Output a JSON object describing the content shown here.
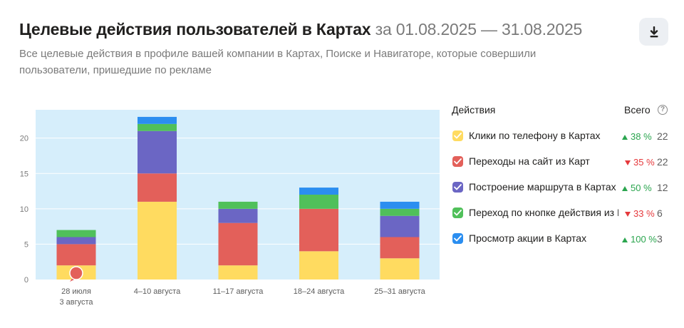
{
  "header": {
    "title": "Целевые действия пользователей в Картах",
    "period": "за 01.08.2025 — 31.08.2025",
    "subtitle": "Все целевые действия в профиле вашей компании в Картах, Поиске и Навигаторе, которые совершили пользователи, пришедшие по рекламе"
  },
  "download_icon": "download-icon",
  "legend": {
    "col_actions": "Действия",
    "col_total": "Всего",
    "help_glyph": "?",
    "items": [
      {
        "label": "Клики по телефону в Картах",
        "color": "#ffdb60",
        "change": "38 %",
        "direction": "up",
        "total": "22"
      },
      {
        "label": "Переходы на сайт из Карт",
        "color": "#e3605a",
        "change": "35 %",
        "direction": "down",
        "total": "22"
      },
      {
        "label": "Построение маршрута в Картах",
        "color": "#6b66c4",
        "change": "50 %",
        "direction": "up",
        "total": "12"
      },
      {
        "label": "Переход по кнопке действия из Карт",
        "color": "#50c05a",
        "change": "33 %",
        "direction": "down",
        "total": "6"
      },
      {
        "label": "Просмотр акции в Картах",
        "color": "#2b8ef0",
        "change": "100 %",
        "direction": "up",
        "total": "3"
      }
    ]
  },
  "chart_data": {
    "type": "bar",
    "stacked": true,
    "categories": [
      [
        "28 июля",
        "3 августа"
      ],
      [
        "4–10 августа"
      ],
      [
        "11–17 августа"
      ],
      [
        "18–24 августа"
      ],
      [
        "25–31 августа"
      ]
    ],
    "series": [
      {
        "name": "Клики по телефону в Картах",
        "color": "#ffdb60",
        "values": [
          2,
          11,
          2,
          4,
          3
        ]
      },
      {
        "name": "Переходы на сайт из Карт",
        "color": "#e3605a",
        "values": [
          3,
          4,
          6,
          6,
          3
        ]
      },
      {
        "name": "Построение маршрута в Картах",
        "color": "#6b66c4",
        "values": [
          1,
          6,
          2,
          0,
          3
        ]
      },
      {
        "name": "Переход по кнопке действия из Карт",
        "color": "#50c05a",
        "values": [
          1,
          1,
          1,
          2,
          1
        ]
      },
      {
        "name": "Просмотр акции в Картах",
        "color": "#2b8ef0",
        "values": [
          0,
          1,
          0,
          1,
          1
        ]
      }
    ],
    "yticks": [
      0,
      5,
      10,
      15,
      20
    ],
    "ylim": [
      0,
      24
    ],
    "grid": true,
    "marker": {
      "category_index": 0,
      "color": "#e3605a"
    }
  }
}
